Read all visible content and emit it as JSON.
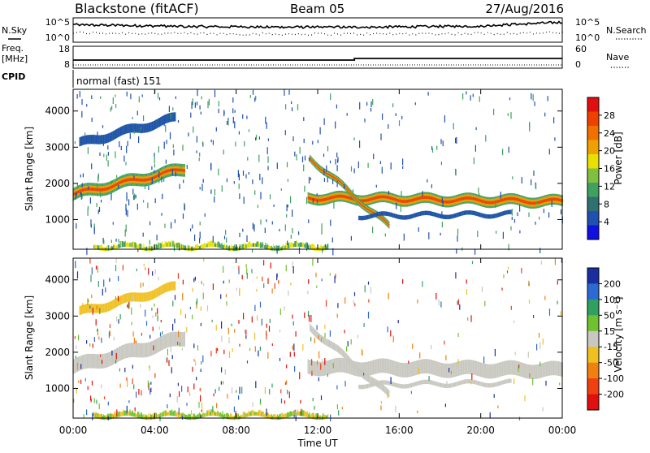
{
  "header": {
    "station": "Blackstone (fitACF)",
    "beam": "Beam 05",
    "date": "27/Aug/2016"
  },
  "summary_panel": {
    "nsky_label": "N.Sky",
    "nsearch_label": "N.Search",
    "noise_ticks": [
      "10^5",
      "10^0"
    ],
    "freq_label_top": "Freq.",
    "freq_label_unit": "[MHz]",
    "freq_ticks": [
      "18",
      "8"
    ],
    "nave_label": "Nave",
    "nave_ticks": [
      "60",
      "0"
    ],
    "cpid_label": "CPID",
    "cpid_text": "normal (fast) 151"
  },
  "x_axis": {
    "label": "Time UT",
    "ticks": [
      "00:00",
      "04:00",
      "08:00",
      "12:00",
      "16:00",
      "20:00",
      "00:00"
    ]
  },
  "chart_data": [
    {
      "type": "heatmap",
      "parameter": "Power",
      "ylabel": "Slant Range [km]",
      "xlabel": "Time UT",
      "xlim_hours": [
        0,
        24
      ],
      "ylim": [
        180,
        4600
      ],
      "yticks": [
        "1000",
        "2000",
        "3000",
        "4000"
      ],
      "colorbar": {
        "label": "Power [dB]",
        "ticks": [
          "4",
          "8",
          "12",
          "16",
          "20",
          "24",
          "28"
        ],
        "colors": [
          "#1010e0",
          "#2050b0",
          "#307070",
          "#40a060",
          "#80c040",
          "#e8e000",
          "#f0a000",
          "#f07000",
          "#f04000",
          "#e01010"
        ]
      },
      "features": [
        {
          "start": 0.0,
          "end": 5.5,
          "r_start": 1700,
          "r_end": 2400,
          "width": 350,
          "core": 200,
          "kind": "band"
        },
        {
          "start": 0.3,
          "end": 5.0,
          "r_start": 3100,
          "r_end": 3800,
          "width": 250,
          "core": 0,
          "kind": "band"
        },
        {
          "start": 11.5,
          "end": 24.0,
          "r_start": 1600,
          "r_end": 1500,
          "width": 300,
          "core": 200,
          "kind": "band"
        },
        {
          "start": 11.6,
          "end": 15.5,
          "r_start": 2700,
          "r_end": 800,
          "width": 200,
          "core": 100,
          "kind": "band"
        },
        {
          "start": 14.0,
          "end": 21.5,
          "r_start": 1100,
          "r_end": 1150,
          "width": 120,
          "core": 0,
          "kind": "band"
        },
        {
          "start": 1.0,
          "end": 12.5,
          "r_start": 280,
          "r_end": 280,
          "width": 180,
          "core": 0,
          "kind": "ground"
        }
      ]
    },
    {
      "type": "heatmap",
      "parameter": "Velocity",
      "ylabel": "Slant Range [km]",
      "xlabel": "Time UT",
      "xlim_hours": [
        0,
        24
      ],
      "ylim": [
        180,
        4600
      ],
      "yticks": [
        "1000",
        "2000",
        "3000",
        "4000"
      ],
      "colorbar": {
        "label": "Velocity [m s⁻¹]",
        "ticks": [
          "200",
          "100",
          "50",
          "15",
          "-15",
          "-50",
          "-100",
          "-200"
        ],
        "colors": [
          "#1a2ea0",
          "#2b6ad0",
          "#30a060",
          "#70c030",
          "#c8c8c0",
          "#f0c020",
          "#f08010",
          "#f04010",
          "#e01010"
        ]
      },
      "features": [
        {
          "start": 0.0,
          "end": 5.5,
          "r_start": 1600,
          "r_end": 2400,
          "width": 400,
          "kind": "gray"
        },
        {
          "start": 0.3,
          "end": 5.0,
          "r_start": 3100,
          "r_end": 3800,
          "width": 250,
          "kind": "orange"
        },
        {
          "start": 11.5,
          "end": 24.0,
          "r_start": 1600,
          "r_end": 1500,
          "width": 400,
          "kind": "gray"
        },
        {
          "start": 11.6,
          "end": 15.5,
          "r_start": 2700,
          "r_end": 800,
          "width": 200,
          "kind": "gray"
        },
        {
          "start": 14.0,
          "end": 21.5,
          "r_start": 1100,
          "r_end": 1150,
          "width": 120,
          "kind": "gray"
        },
        {
          "start": 1.0,
          "end": 12.5,
          "r_start": 280,
          "r_end": 280,
          "width": 180,
          "kind": "ground"
        }
      ]
    }
  ]
}
